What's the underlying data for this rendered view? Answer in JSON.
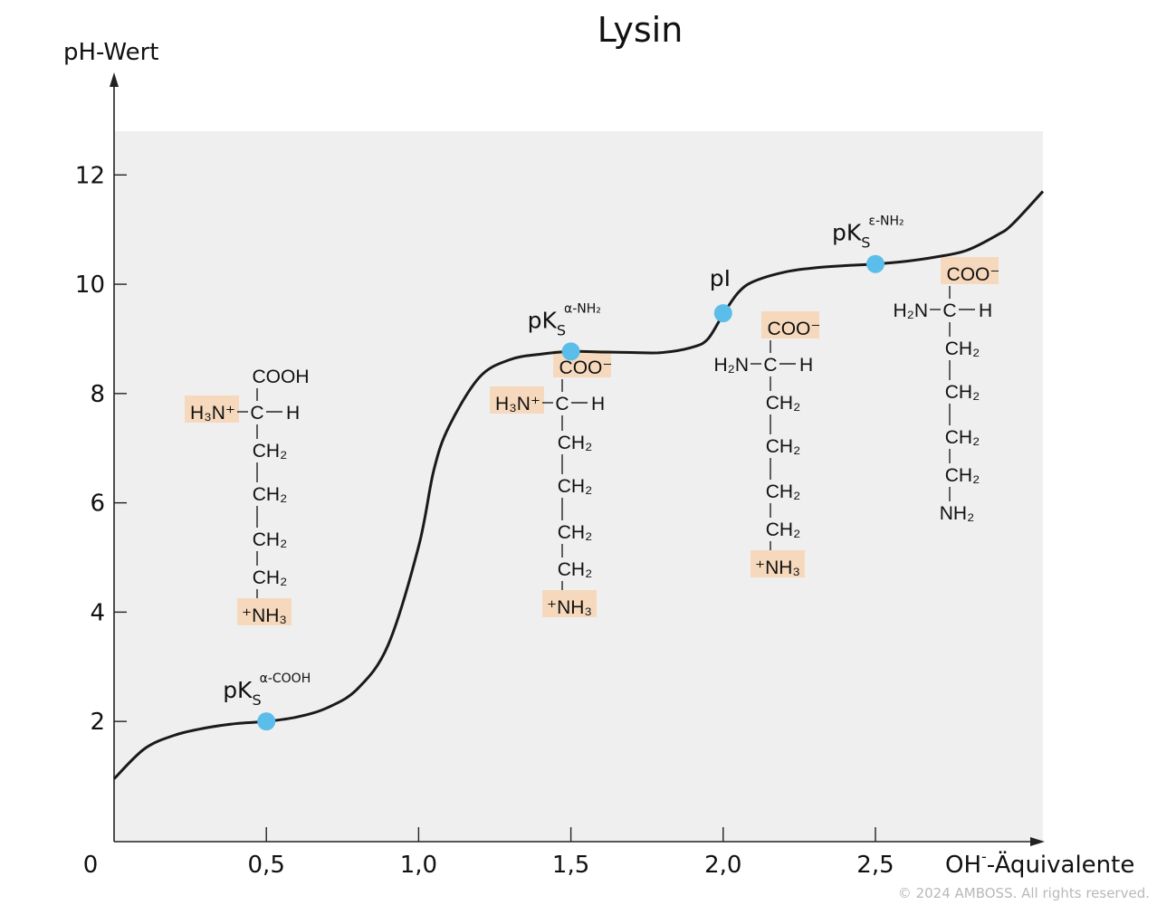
{
  "chart_data": {
    "type": "line",
    "title": "Lysin",
    "ylabel": "pH-Wert",
    "xlabel_main": "OH",
    "xlabel_sup": "-",
    "xlabel_rest": "-Äquivalente",
    "origin_label": "0",
    "xlim": [
      0,
      3.05
    ],
    "ylim": [
      -0.2,
      12.8
    ],
    "x_ticks": [
      {
        "value": 0.5,
        "label": "0,5"
      },
      {
        "value": 1.0,
        "label": "1,0"
      },
      {
        "value": 1.5,
        "label": "1,5"
      },
      {
        "value": 2.0,
        "label": "2,0"
      },
      {
        "value": 2.5,
        "label": "2,5"
      }
    ],
    "y_ticks": [
      {
        "value": 2,
        "label": "2"
      },
      {
        "value": 4,
        "label": "4"
      },
      {
        "value": 6,
        "label": "6"
      },
      {
        "value": 8,
        "label": "8"
      },
      {
        "value": 10,
        "label": "10"
      },
      {
        "value": 12,
        "label": "12"
      }
    ],
    "curve": {
      "x": [
        0,
        0.1,
        0.2,
        0.3,
        0.4,
        0.5,
        0.6,
        0.7,
        0.8,
        0.9,
        1.0,
        1.05,
        1.1,
        1.2,
        1.3,
        1.4,
        1.5,
        1.6,
        1.7,
        1.8,
        1.9,
        1.95,
        2.0,
        2.05,
        2.1,
        2.2,
        2.3,
        2.4,
        2.5,
        2.6,
        2.7,
        2.8,
        2.9,
        2.95,
        3.05
      ],
      "y": [
        0.95,
        1.5,
        1.75,
        1.88,
        1.96,
        2.0,
        2.08,
        2.25,
        2.6,
        3.4,
        5.2,
        6.6,
        7.4,
        8.3,
        8.62,
        8.72,
        8.77,
        8.76,
        8.75,
        8.75,
        8.85,
        9.0,
        9.45,
        9.85,
        10.05,
        10.22,
        10.3,
        10.34,
        10.37,
        10.42,
        10.5,
        10.62,
        10.9,
        11.1,
        11.7
      ]
    },
    "points": [
      {
        "x": 0.5,
        "y": 2.0,
        "label": "pK",
        "sub": "S",
        "sup": "α-COOH"
      },
      {
        "x": 1.5,
        "y": 8.77,
        "label": "pK",
        "sub": "S",
        "sup": "α-NH₂"
      },
      {
        "x": 2.0,
        "y": 9.47,
        "label": "pI",
        "sub": "",
        "sup": ""
      },
      {
        "x": 2.5,
        "y": 10.37,
        "label": "pK",
        "sub": "S",
        "sup": "ε-NH₂"
      }
    ],
    "colors": {
      "curve": "#1a1a1a",
      "point": "#5bbde9",
      "plot_bg": "#efefef",
      "highlight": "#f6d9bd"
    },
    "structures": [
      {
        "top": "COOH",
        "top_hl": false,
        "left": "H₃N⁺",
        "left_hl": true,
        "right": "H",
        "chain": [
          "CH₂",
          "CH₂",
          "CH₂",
          "CH₂"
        ],
        "bottom": "⁺NH₃",
        "bottom_hl": true
      },
      {
        "top": "COO⁻",
        "top_hl": true,
        "left": "H₃N⁺",
        "left_hl": true,
        "right": "H",
        "chain": [
          "CH₂",
          "CH₂",
          "CH₂",
          "CH₂"
        ],
        "bottom": "⁺NH₃",
        "bottom_hl": true
      },
      {
        "top": "COO⁻",
        "top_hl": true,
        "left": "H₂N",
        "left_hl": false,
        "right": "H",
        "chain": [
          "CH₂",
          "CH₂",
          "CH₂",
          "CH₂"
        ],
        "bottom": "⁺NH₃",
        "bottom_hl": true
      },
      {
        "top": "COO⁻",
        "top_hl": true,
        "left": "H₂N",
        "left_hl": false,
        "right": "H",
        "chain": [
          "CH₂",
          "CH₂",
          "CH₂",
          "CH₂"
        ],
        "bottom": "NH₂",
        "bottom_hl": false
      }
    ]
  },
  "footer": {
    "copyright": "© 2024 AMBOSS. All rights reserved."
  }
}
